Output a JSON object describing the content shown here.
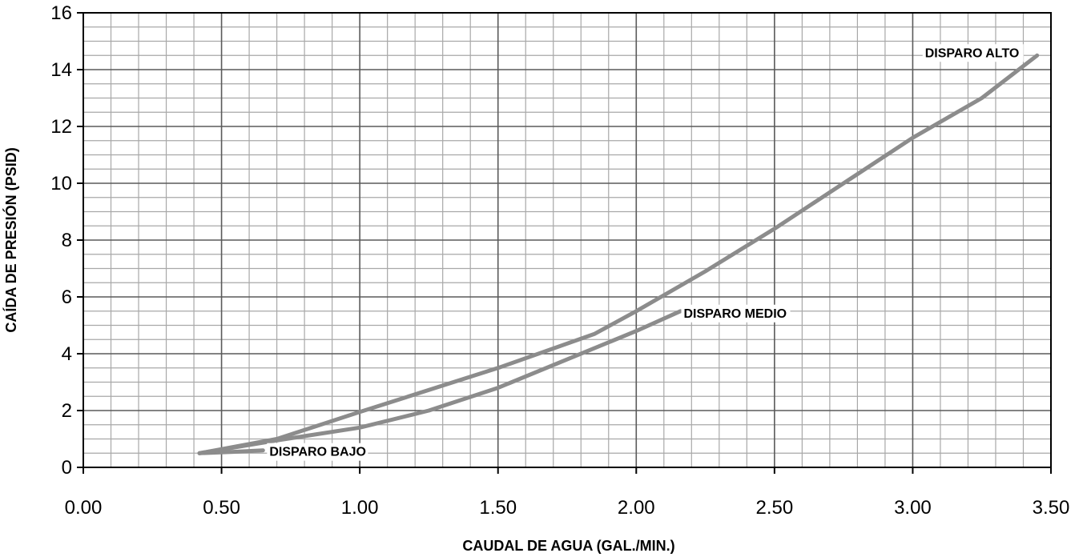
{
  "chart_data": {
    "type": "line",
    "title": "",
    "xlabel": "CAUDAL DE AGUA (GAL./MIN.)",
    "ylabel": "CAÍDA DE PRESIÓN (PSID)",
    "xlim": [
      0,
      3.5
    ],
    "ylim": [
      0,
      16
    ],
    "x_ticks": [
      "0.00",
      "0.50",
      "1.00",
      "1.50",
      "2.00",
      "2.50",
      "3.00",
      "3.50"
    ],
    "y_ticks": [
      "0",
      "2",
      "4",
      "6",
      "8",
      "10",
      "12",
      "14",
      "16"
    ],
    "grid": true,
    "line_color": "#8c8c8c",
    "series": [
      {
        "name": "DISPARO BAJO",
        "points": [
          [
            0.42,
            0.5
          ],
          [
            0.55,
            0.55
          ],
          [
            0.65,
            0.6
          ]
        ]
      },
      {
        "name": "DISPARO MEDIO",
        "points": [
          [
            0.42,
            0.5
          ],
          [
            0.7,
            0.95
          ],
          [
            1.0,
            1.4
          ],
          [
            1.25,
            2.0
          ],
          [
            1.5,
            2.8
          ],
          [
            1.75,
            3.8
          ],
          [
            2.0,
            4.8
          ],
          [
            2.16,
            5.5
          ]
        ]
      },
      {
        "name": "DISPARO ALTO",
        "points": [
          [
            0.42,
            0.5
          ],
          [
            0.7,
            1.0
          ],
          [
            1.0,
            1.95
          ],
          [
            1.5,
            3.5
          ],
          [
            1.85,
            4.7
          ],
          [
            2.0,
            5.5
          ],
          [
            2.25,
            6.9
          ],
          [
            2.5,
            8.4
          ],
          [
            2.75,
            10.0
          ],
          [
            3.0,
            11.6
          ],
          [
            3.25,
            13.0
          ],
          [
            3.45,
            14.5
          ]
        ]
      }
    ]
  }
}
